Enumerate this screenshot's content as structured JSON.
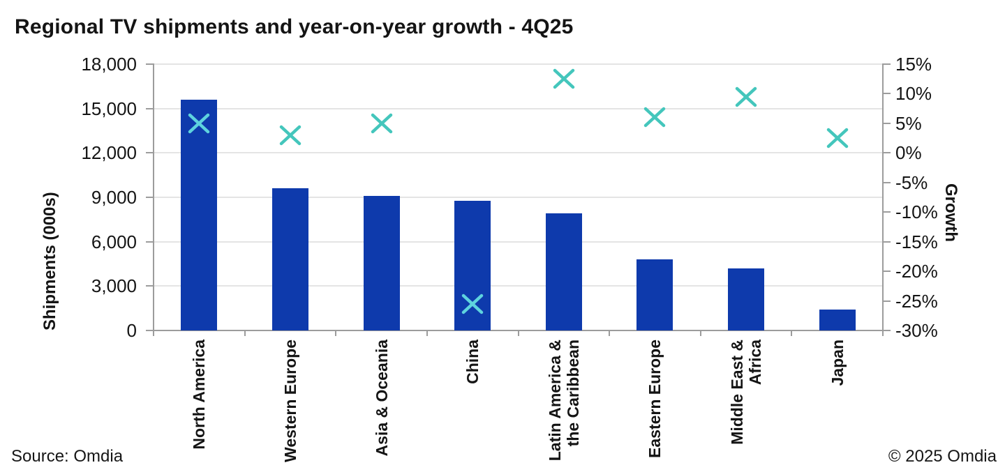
{
  "title": "Regional TV shipments and year-on-year growth - 4Q25",
  "source": "Source: Omdia",
  "copyright": "© 2025 Omdia",
  "colors": {
    "bar": "#0E3AAC",
    "marker": "#44C6BC",
    "marker_on_bar": "#5ED3DE",
    "gridline": "#E4E4E4",
    "axis": "#9C9C9C",
    "text": "#141414"
  },
  "chart_data": {
    "type": "bar",
    "title": "Regional TV shipments and year-on-year growth - 4Q25",
    "categories": [
      "North America",
      "Western Europe",
      "Asia & Oceania",
      "China",
      "Latin America &\nthe Caribbean",
      "Eastern Europe",
      "Middle East &\nAfrica",
      "Japan"
    ],
    "series": [
      {
        "name": "Shipments (000s)",
        "type": "bar",
        "axis": "left",
        "values": [
          15600,
          9600,
          9100,
          8750,
          7900,
          4800,
          4200,
          1400
        ]
      },
      {
        "name": "Growth",
        "type": "scatter",
        "marker": "x",
        "axis": "right",
        "values": [
          5,
          3,
          5,
          -25.5,
          12.5,
          6,
          9.5,
          2.5
        ]
      }
    ],
    "y_left": {
      "label": "Shipments (000s)",
      "min": 0,
      "max": 18000,
      "step": 3000,
      "ticks": [
        "18,000",
        "15,000",
        "12,000",
        "9,000",
        "6,000",
        "3,000",
        "0"
      ]
    },
    "y_right": {
      "label": "Growth",
      "min": -30,
      "max": 15,
      "step": 5,
      "ticks": [
        "15%",
        "10%",
        "5%",
        "0%",
        "-5%",
        "-10%",
        "-15%",
        "-20%",
        "-25%",
        "-30%"
      ]
    },
    "grid": "horizontal",
    "legend": "none"
  }
}
